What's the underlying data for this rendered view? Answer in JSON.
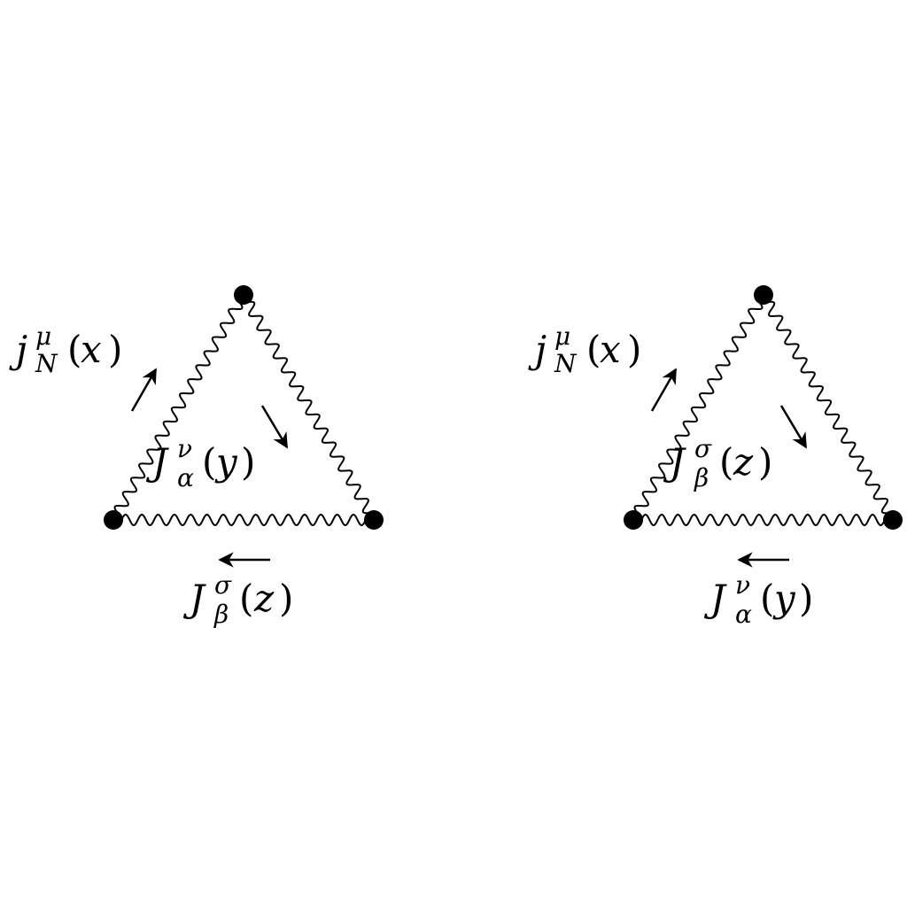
{
  "colors": {
    "line": "#000000",
    "background": "#ffffff"
  },
  "diagrams": [
    {
      "name": "left",
      "labels": {
        "top_left": {
          "base": "j",
          "sup": "μ",
          "sub": "N",
          "arg": "x"
        },
        "inner": {
          "base": "J",
          "sup": "ν",
          "sub": "α",
          "arg": "y"
        },
        "bottom": {
          "base": "J",
          "sup": "σ",
          "sub": "β",
          "arg": "z"
        }
      }
    },
    {
      "name": "right",
      "labels": {
        "top_left": {
          "base": "j",
          "sup": "μ",
          "sub": "N",
          "arg": "x"
        },
        "inner": {
          "base": "J",
          "sup": "σ",
          "sub": "β",
          "arg": "z"
        },
        "bottom": {
          "base": "J",
          "sup": "ν",
          "sub": "α",
          "arg": "y"
        }
      }
    }
  ],
  "parens": {
    "open": "(",
    "close": ")"
  }
}
